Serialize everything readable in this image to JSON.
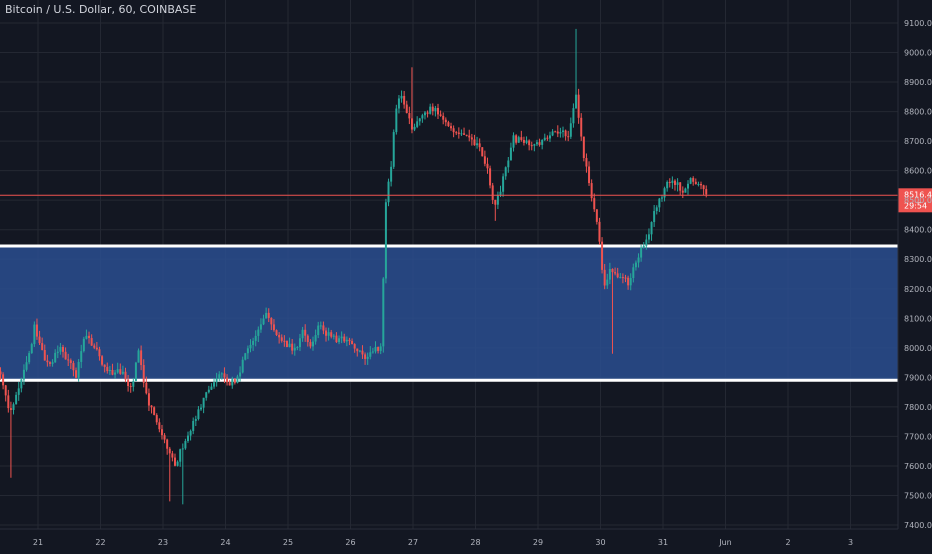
{
  "header": {
    "symbol_title": "Bitcoin / U.S. Dollar, 60, COINBASE"
  },
  "price_label": {
    "price": "8516.48",
    "countdown": "29:54"
  },
  "colors": {
    "background": "#131722",
    "grid": "#242833",
    "text": "#b2b5be",
    "up": "#26a69a",
    "down": "#ef5350",
    "zone_fill": "#2a4d8f",
    "zone_line": "#ffffff",
    "price_line": "#ef5350"
  },
  "chart_data": {
    "type": "candlestick",
    "title": "Bitcoin / U.S. Dollar, 60, COINBASE",
    "ylim": [
      7400,
      9100
    ],
    "y_ticks": [
      "9100.00",
      "9000.00",
      "8900.00",
      "8800.00",
      "8700.00",
      "8600.00",
      "8500.00",
      "8400.00",
      "8300.00",
      "8200.00",
      "8100.00",
      "8000.00",
      "7900.00",
      "7800.00",
      "7700.00",
      "7600.00",
      "7500.00",
      "7400.00"
    ],
    "x_ticks": [
      "21",
      "22",
      "23",
      "24",
      "25",
      "26",
      "27",
      "28",
      "29",
      "30",
      "31",
      "Jun",
      "2",
      "3"
    ],
    "x_tick_days": [
      0,
      1,
      2,
      3,
      4,
      5,
      6,
      7,
      8,
      9,
      10,
      11,
      12,
      13
    ],
    "zone": {
      "low": 7890,
      "high": 8345
    },
    "current_price": 8516.48,
    "path_points": [
      [
        -0.6,
        7910
      ],
      [
        -0.45,
        7770
      ],
      [
        -0.3,
        7880
      ],
      [
        -0.15,
        7970
      ],
      [
        -0.05,
        8080
      ],
      [
        0.05,
        7990
      ],
      [
        0.2,
        7930
      ],
      [
        0.35,
        8010
      ],
      [
        0.5,
        7950
      ],
      [
        0.6,
        7900
      ],
      [
        0.75,
        8060
      ],
      [
        0.85,
        8010
      ],
      [
        0.95,
        7990
      ],
      [
        1.1,
        7910
      ],
      [
        1.3,
        7930
      ],
      [
        1.5,
        7850
      ],
      [
        1.6,
        7990
      ],
      [
        1.75,
        7830
      ],
      [
        1.85,
        7770
      ],
      [
        2.0,
        7700
      ],
      [
        2.1,
        7640
      ],
      [
        2.2,
        7600
      ],
      [
        2.3,
        7660
      ],
      [
        2.45,
        7730
      ],
      [
        2.6,
        7800
      ],
      [
        2.75,
        7870
      ],
      [
        2.9,
        7920
      ],
      [
        3.05,
        7880
      ],
      [
        3.2,
        7900
      ],
      [
        3.35,
        8000
      ],
      [
        3.5,
        8040
      ],
      [
        3.65,
        8110
      ],
      [
        3.8,
        8060
      ],
      [
        3.95,
        8020
      ],
      [
        4.1,
        7990
      ],
      [
        4.25,
        8060
      ],
      [
        4.35,
        8010
      ],
      [
        4.5,
        8070
      ],
      [
        4.65,
        8040
      ],
      [
        4.8,
        8020
      ],
      [
        4.95,
        8040
      ],
      [
        5.1,
        7990
      ],
      [
        5.25,
        7960
      ],
      [
        5.4,
        7990
      ],
      [
        5.5,
        8010
      ],
      [
        5.55,
        8480
      ],
      [
        5.65,
        8610
      ],
      [
        5.72,
        8810
      ],
      [
        5.8,
        8860
      ],
      [
        5.9,
        8790
      ],
      [
        6.0,
        8740
      ],
      [
        6.15,
        8780
      ],
      [
        6.3,
        8820
      ],
      [
        6.45,
        8770
      ],
      [
        6.6,
        8740
      ],
      [
        6.75,
        8720
      ],
      [
        6.9,
        8710
      ],
      [
        7.05,
        8680
      ],
      [
        7.2,
        8590
      ],
      [
        7.3,
        8460
      ],
      [
        7.45,
        8580
      ],
      [
        7.6,
        8710
      ],
      [
        7.75,
        8700
      ],
      [
        7.9,
        8690
      ],
      [
        8.05,
        8700
      ],
      [
        8.2,
        8720
      ],
      [
        8.35,
        8740
      ],
      [
        8.5,
        8710
      ],
      [
        8.6,
        8880
      ],
      [
        8.7,
        8690
      ],
      [
        8.8,
        8580
      ],
      [
        8.95,
        8420
      ],
      [
        9.05,
        8200
      ],
      [
        9.15,
        8260
      ],
      [
        9.3,
        8240
      ],
      [
        9.45,
        8220
      ],
      [
        9.6,
        8300
      ],
      [
        9.75,
        8380
      ],
      [
        9.9,
        8480
      ],
      [
        10.05,
        8550
      ],
      [
        10.2,
        8560
      ],
      [
        10.35,
        8530
      ],
      [
        10.45,
        8570
      ],
      [
        10.55,
        8555
      ],
      [
        10.65,
        8530
      ],
      [
        10.7,
        8516
      ]
    ]
  }
}
